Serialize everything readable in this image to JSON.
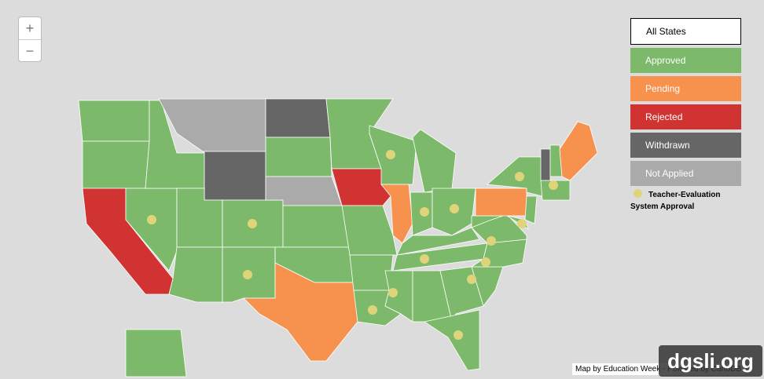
{
  "zoom": {
    "in": "+",
    "out": "−"
  },
  "legend": {
    "items": [
      "All States",
      "Approved",
      "Pending",
      "Rejected",
      "Withdrawn",
      "Not Applied"
    ],
    "marker_label": "Teacher-Evaluation System Approval"
  },
  "attribution": "Map by Education Week - Powered by CartoDB",
  "watermark": "dgsli.org"
}
